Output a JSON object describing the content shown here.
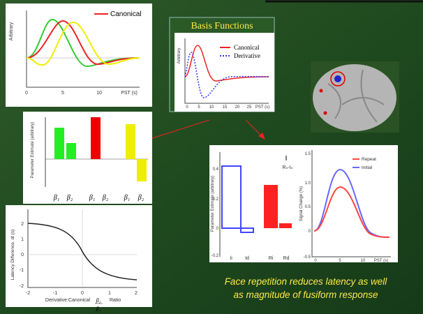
{
  "canonical_panel": {
    "legend": "Canonical",
    "y_label": "Arbitrary",
    "x_ticks": [
      "0",
      "5",
      "10",
      "PST (s)"
    ]
  },
  "basis_panel": {
    "title": "Basis Functions",
    "legend": [
      "Canonical",
      "Derivative"
    ],
    "y_label": "Arbitrary",
    "x_ticks": [
      "0",
      "5",
      "10",
      "15",
      "20",
      "25",
      "PST (s)"
    ]
  },
  "estimate_panel": {
    "y_label": "Parameter Estimate (arbitrary)",
    "x_labels": [
      "β₁",
      "β₂",
      "β₁",
      "β₂",
      "β₁",
      "β₂"
    ]
  },
  "latency_panel": {
    "y_label": "Latency Difference, dt (s)",
    "y_ticks": [
      "2",
      "1",
      "0",
      "-1",
      "-2"
    ],
    "x_ticks": [
      "-2",
      "-1",
      "0",
      "1",
      "2"
    ],
    "x_label": "Derivative:Canonical",
    "ratio_top": "β₂",
    "ratio_bottom": "β₁",
    "ratio_word": "Ratio"
  },
  "results_panel": {
    "bars": {
      "y_label": "Parameter Estimate (arbitrary)",
      "y_ticks": [
        "0.4",
        "0.2",
        "0",
        "-0.2"
      ],
      "legend": "Rₙ-Iₙ",
      "x_labels": [
        "Ii",
        "Id",
        "Ri",
        "Rd"
      ]
    },
    "curves": {
      "y_label": "Signal Change (%)",
      "y_ticks": [
        "1.5",
        "1.0",
        "0.5",
        "0",
        "-0.5"
      ],
      "x_ticks": [
        "0",
        "5",
        "10",
        "PST (s)"
      ],
      "legend": [
        "Repeat",
        "Initial"
      ]
    }
  },
  "caption": [
    "Face repetition reduces latency as well",
    "as magnitude of fusiform response"
  ]
}
